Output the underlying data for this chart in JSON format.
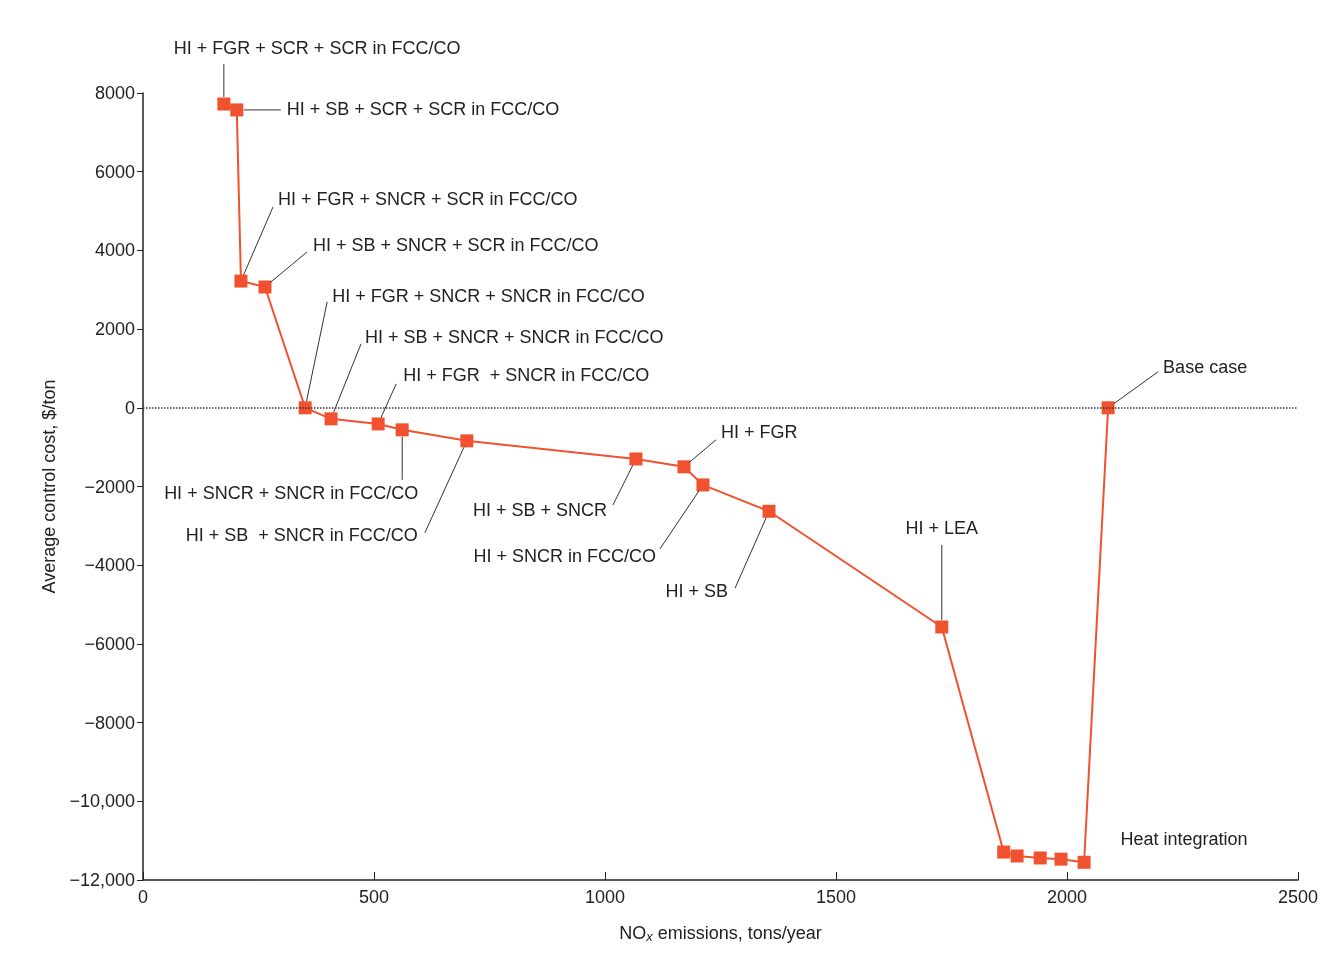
{
  "chart_data": {
    "type": "line",
    "xlabel": "NO$_{x}$ emissions, tons/year",
    "ylabel": "Average control cost, $/ton",
    "x": [
      175,
      203,
      212,
      264,
      351,
      407,
      509,
      561,
      701,
      1067,
      1171,
      1212,
      1355,
      1729,
      1863,
      1892,
      1942,
      1987,
      2037,
      2089
    ],
    "series": [
      {
        "color": "#f0512e",
        "values": [
          7720,
          7570,
          3220,
          3070,
          0,
          -280,
          -410,
          -560,
          -840,
          -1300,
          -1500,
          -1960,
          -2630,
          -5570,
          -11290,
          -11390,
          -11440,
          -11470,
          -11550,
          0
        ]
      }
    ],
    "xlim": [
      0,
      2500
    ],
    "xticks": [
      0,
      500,
      1000,
      1500,
      2000,
      2500
    ],
    "ylim": [
      -12000,
      8000
    ],
    "yticks": [
      {
        "value": -12000,
        "label": "−12,000"
      },
      {
        "value": -10000,
        "label": "−10,000"
      },
      {
        "value": -8000,
        "label": "−8000"
      },
      {
        "value": -6000,
        "label": "−6000"
      },
      {
        "value": -4000,
        "label": "−4000"
      },
      {
        "value": -2000,
        "label": "−2000"
      },
      0,
      2000,
      4000,
      6000,
      8000
    ],
    "marker": "square",
    "line_style": "solid",
    "grid": false,
    "ref_lines": [
      {
        "axis": "y",
        "value": 0,
        "color": "#333333",
        "line_style": "dotted"
      }
    ],
    "annotations": [
      {
        "text": "HI + FGR + SCR + SCR in FCC/CO",
        "x": 175,
        "y": 7720
      },
      {
        "text": "HI + SB + SCR + SCR in FCC/CO",
        "x": 203,
        "y": 7570
      },
      {
        "text": "HI + FGR + SNCR + SCR in FCC/CO",
        "x": 212,
        "y": 3220
      },
      {
        "text": "HI + SB + SNCR + SCR in FCC/CO",
        "x": 264,
        "y": 3070
      },
      {
        "text": "HI + FGR + SNCR + SNCR in FCC/CO",
        "x": 351,
        "y": 0
      },
      {
        "text": "HI + SB + SNCR + SNCR in FCC/CO",
        "x": 407,
        "y": -280
      },
      {
        "text": "HI + FGR  + SNCR in FCC/CO",
        "x": 509,
        "y": -410
      },
      {
        "text": "HI + SNCR + SNCR in FCC/CO",
        "x": 561,
        "y": -560
      },
      {
        "text": "HI + SB  + SNCR in FCC/CO",
        "x": 701,
        "y": -840
      },
      {
        "text": "HI + SB + SNCR",
        "x": 1067,
        "y": -1300
      },
      {
        "text": "HI + FGR",
        "x": 1171,
        "y": -1500
      },
      {
        "text": "HI + SNCR in FCC/CO",
        "x": 1212,
        "y": -1960
      },
      {
        "text": "HI + SB",
        "x": 1355,
        "y": -2630
      },
      {
        "text": "HI + LEA",
        "x": 1729,
        "y": -5570
      },
      {
        "text": "Base case",
        "x": 2089,
        "y": 0
      },
      {
        "text": "Heat integration",
        "x": 2037,
        "y": -11550
      }
    ]
  }
}
